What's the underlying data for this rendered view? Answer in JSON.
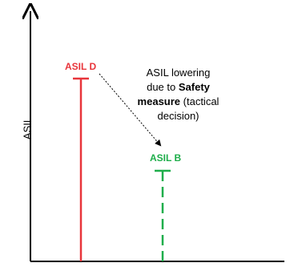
{
  "colors": {
    "axis": "#000000",
    "asil_d": "#e8353b",
    "asil_b": "#1fae4b",
    "arrow": "#000000"
  },
  "yaxis": {
    "label": "ASIL"
  },
  "levels": {
    "high": {
      "label": "ASIL D"
    },
    "low": {
      "label": "ASIL B"
    }
  },
  "annotation": {
    "line1": "ASIL lowering",
    "line2_pre": "due to ",
    "line2_bold": "Safety",
    "line3_bold": "measure",
    "line3_post": " (tactical",
    "line4": "decision)"
  }
}
